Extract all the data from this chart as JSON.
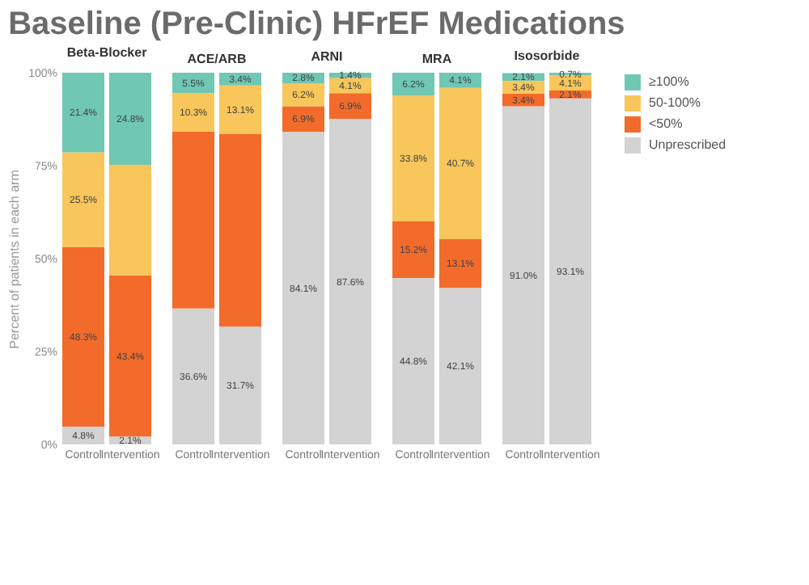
{
  "chart_data": [
    {
      "type": "bar",
      "title": "Baseline (Pre-Clinic) HFrEF Medications",
      "subtitle": "Beta-Blocker",
      "ylabel": "Percent of patients in each arm",
      "categories": [
        "Control",
        "Intervention"
      ],
      "stacked": true,
      "ylim": [
        0,
        100
      ],
      "yticks": [
        {
          "value": 0,
          "label": "0%"
        },
        {
          "value": 25,
          "label": "25%"
        },
        {
          "value": 50,
          "label": "50%"
        },
        {
          "value": 75,
          "label": "75%"
        },
        {
          "value": 100,
          "label": "100%"
        }
      ],
      "series": [
        {
          "color": "#d3d3d3",
          "values": [
            4.8,
            2.1
          ],
          "value_labels": [
            "4.8%",
            "2.1%"
          ]
        },
        {
          "color": "#f26b2b",
          "values": [
            48.3,
            43.4
          ],
          "value_labels": [
            "48.3%",
            "43.4%"
          ]
        },
        {
          "color": "#f8c65a",
          "values": [
            25.5,
            29.7
          ],
          "value_labels": [
            "25.5%",
            null
          ]
        },
        {
          "color": "#6fc7b4",
          "values": [
            21.4,
            24.8
          ],
          "value_labels": [
            "21.4%",
            "24.8%"
          ]
        }
      ]
    },
    {
      "type": "bar",
      "subtitle": "ACE/ARB",
      "categories": [
        "Control",
        "Intervention"
      ],
      "stacked": true,
      "ylim": [
        0,
        100
      ],
      "tick_labels": "x",
      "series": [
        {
          "color": "#d3d3d3",
          "values": [
            36.6,
            31.7
          ],
          "value_labels": [
            "36.6%",
            "31.7%"
          ]
        },
        {
          "color": "#f26b2b",
          "values": [
            47.6,
            51.8
          ],
          "value_labels": [
            null,
            null
          ]
        },
        {
          "color": "#f8c65a",
          "values": [
            10.3,
            13.1
          ],
          "value_labels": [
            "10.3%",
            "13.1%"
          ]
        },
        {
          "color": "#6fc7b4",
          "values": [
            5.5,
            3.4
          ],
          "value_labels": [
            "5.5%",
            "3.4%"
          ]
        }
      ]
    },
    {
      "type": "bar",
      "subtitle": "ARNI",
      "categories": [
        "Control",
        "Intervention"
      ],
      "stacked": true,
      "ylim": [
        0,
        100
      ],
      "tick_labels": "x",
      "series": [
        {
          "color": "#d3d3d3",
          "values": [
            84.1,
            87.6
          ],
          "value_labels": [
            "84.1%",
            "87.6%"
          ]
        },
        {
          "color": "#f26b2b",
          "values": [
            6.9,
            6.9
          ],
          "value_labels": [
            "6.9%",
            "6.9%"
          ]
        },
        {
          "color": "#f8c65a",
          "values": [
            6.2,
            4.1
          ],
          "value_labels": [
            "6.2%",
            "4.1%"
          ]
        },
        {
          "color": "#6fc7b4",
          "values": [
            2.8,
            1.4
          ],
          "value_labels": [
            "2.8%",
            "1.4%"
          ]
        }
      ]
    },
    {
      "type": "bar",
      "subtitle": "MRA",
      "categories": [
        "Control",
        "Intervention"
      ],
      "stacked": true,
      "ylim": [
        0,
        100
      ],
      "tick_labels": "x",
      "series": [
        {
          "color": "#d3d3d3",
          "values": [
            44.8,
            42.1
          ],
          "value_labels": [
            "44.8%",
            "42.1%"
          ]
        },
        {
          "color": "#f26b2b",
          "values": [
            15.2,
            13.1
          ],
          "value_labels": [
            "15.2%",
            "13.1%"
          ]
        },
        {
          "color": "#f8c65a",
          "values": [
            33.8,
            40.7
          ],
          "value_labels": [
            "33.8%",
            "40.7%"
          ]
        },
        {
          "color": "#6fc7b4",
          "values": [
            6.2,
            4.1
          ],
          "value_labels": [
            "6.2%",
            "4.1%"
          ]
        }
      ]
    },
    {
      "type": "bar",
      "subtitle": "Isosorbide",
      "categories": [
        "Control",
        "Intervention"
      ],
      "stacked": true,
      "ylim": [
        0,
        100
      ],
      "tick_labels": "x",
      "legend": "right",
      "series": [
        {
          "name": "Unprescribed",
          "color": "#d3d3d3",
          "values": [
            91.0,
            93.1
          ],
          "value_labels": [
            "91.0%",
            "93.1%"
          ]
        },
        {
          "name": "<50%",
          "color": "#f26b2b",
          "values": [
            3.4,
            2.1
          ],
          "value_labels": [
            "3.4%",
            "2.1%"
          ]
        },
        {
          "name": "50-100%",
          "color": "#f8c65a",
          "values": [
            3.4,
            4.1
          ],
          "value_labels": [
            "3.4%",
            "4.1%"
          ]
        },
        {
          "name": "≥100%",
          "color": "#6fc7b4",
          "values": [
            2.1,
            0.7
          ],
          "value_labels": [
            "2.1%",
            "0.7%"
          ]
        }
      ]
    }
  ]
}
